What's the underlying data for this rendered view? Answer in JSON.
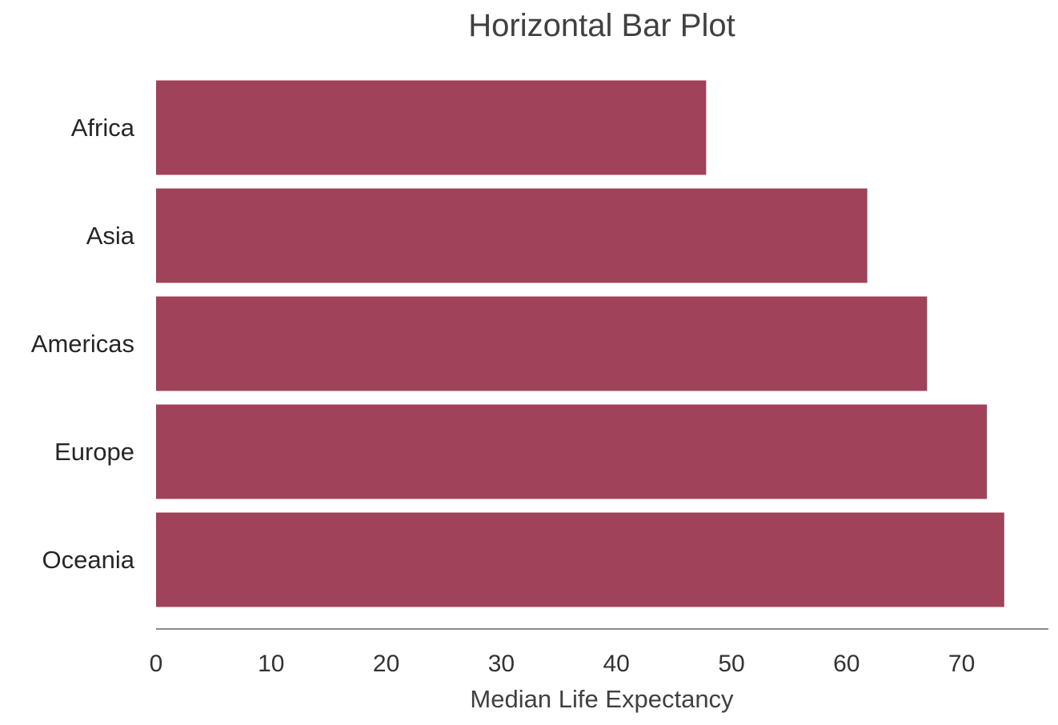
{
  "chart_data": {
    "type": "bar",
    "orientation": "horizontal",
    "title": "Horizontal Bar Plot",
    "xlabel": "Median Life Expectancy",
    "ylabel": "",
    "categories": [
      "Africa",
      "Asia",
      "Americas",
      "Europe",
      "Oceania"
    ],
    "values": [
      47.8,
      61.8,
      67.0,
      72.2,
      73.7
    ],
    "xlim": [
      0,
      77
    ],
    "xticks": [
      0,
      10,
      20,
      30,
      40,
      50,
      60,
      70
    ],
    "bar_color": "#a0425a",
    "grid": false,
    "legend": "none"
  }
}
